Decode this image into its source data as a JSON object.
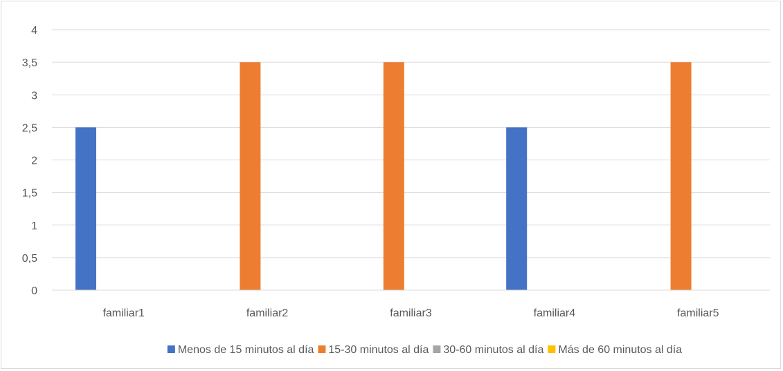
{
  "chart_data": {
    "type": "bar",
    "categories": [
      "familiar1",
      "familiar2",
      "familiar3",
      "familiar4",
      "familiar5"
    ],
    "series": [
      {
        "name": "Menos de 15 minutos al día",
        "color": "#4472c4",
        "values": [
          2.5,
          0,
          0,
          2.5,
          0
        ]
      },
      {
        "name": "15-30 minutos al día",
        "color": "#ed7d31",
        "values": [
          0,
          3.5,
          3.5,
          0,
          3.5
        ]
      },
      {
        "name": "30-60 minutos al día",
        "color": "#a5a5a5",
        "values": [
          0,
          0,
          0,
          0,
          0
        ]
      },
      {
        "name": "Más de 60 minutos al día",
        "color": "#ffc000",
        "values": [
          0,
          0,
          0,
          0,
          0
        ]
      }
    ],
    "yticks": [
      "0",
      "0,5",
      "1",
      "1,5",
      "2",
      "2,5",
      "3",
      "3,5",
      "4"
    ],
    "ylim": [
      0,
      4
    ],
    "grid": true,
    "legend_position": "bottom",
    "title": "",
    "xlabel": "",
    "ylabel": ""
  }
}
